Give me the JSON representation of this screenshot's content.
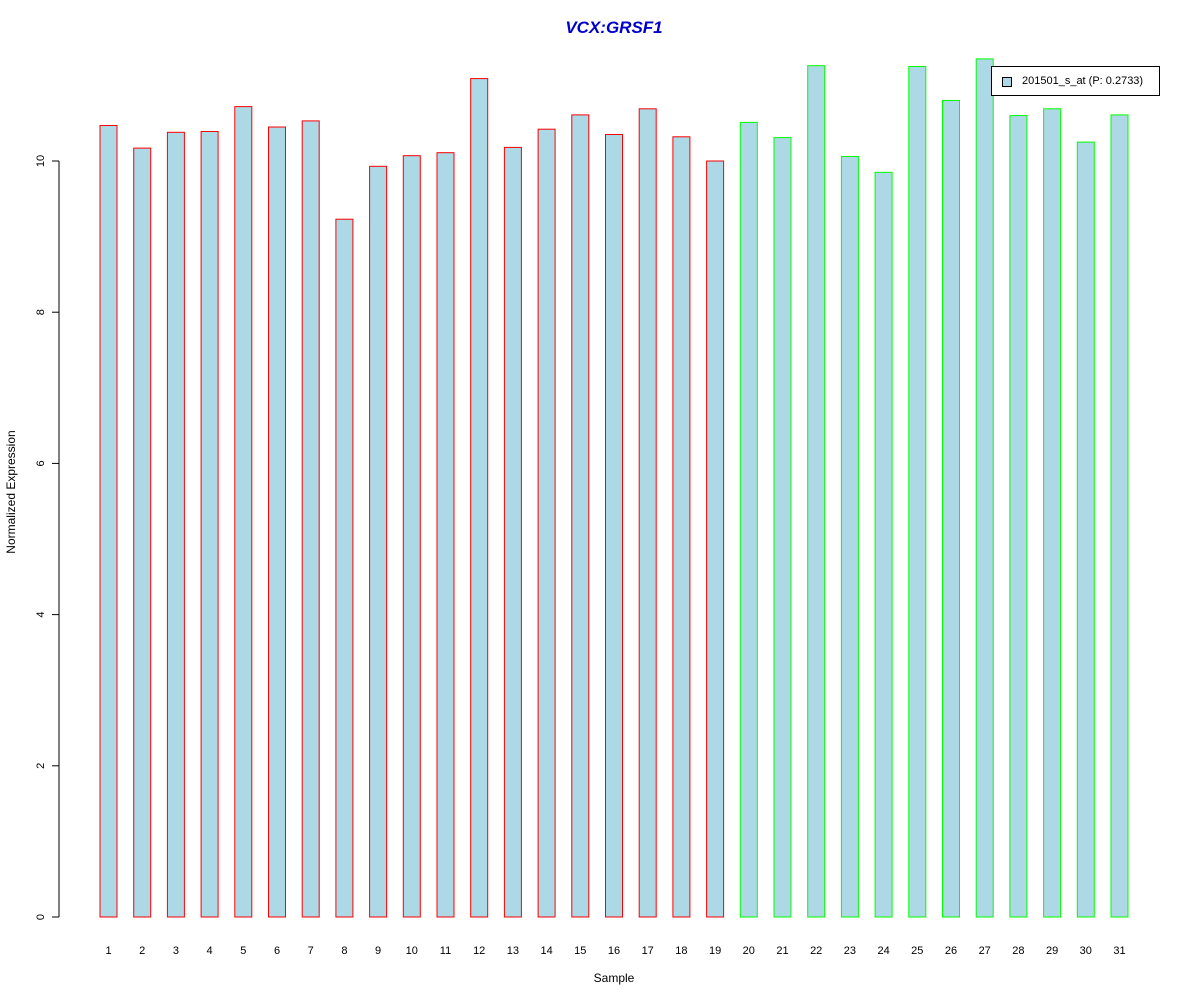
{
  "chart_data": {
    "type": "bar",
    "title": "VCX:GRSF1",
    "xlabel": "Sample",
    "ylabel": "Normalized Expression",
    "ylim": [
      0,
      11.35
    ],
    "yticks": [
      0,
      2,
      4,
      6,
      8,
      10
    ],
    "categories": [
      "1",
      "2",
      "3",
      "4",
      "5",
      "6",
      "7",
      "8",
      "9",
      "10",
      "11",
      "12",
      "13",
      "14",
      "15",
      "16",
      "17",
      "18",
      "19",
      "20",
      "21",
      "22",
      "23",
      "24",
      "25",
      "26",
      "27",
      "28",
      "29",
      "30",
      "31"
    ],
    "values": [
      10.47,
      10.17,
      10.38,
      10.39,
      10.72,
      10.45,
      10.53,
      9.23,
      9.93,
      10.07,
      10.11,
      11.09,
      10.18,
      10.42,
      10.61,
      10.35,
      10.69,
      10.32,
      10.0,
      10.51,
      10.31,
      11.26,
      10.06,
      9.85,
      11.25,
      10.8,
      11.35,
      10.6,
      10.69,
      10.25,
      10.61
    ],
    "groups": [
      "red",
      "red",
      "red",
      "red",
      "red",
      "red",
      "red",
      "red",
      "red",
      "red",
      "red",
      "red",
      "red",
      "red",
      "red",
      "red",
      "red",
      "red",
      "red",
      "green",
      "green",
      "green",
      "green",
      "green",
      "green",
      "green",
      "green",
      "green",
      "green",
      "green",
      "green"
    ],
    "fill_color": "#add8e6",
    "group_colors": {
      "red": "#ff0000",
      "green": "#00ff00"
    },
    "title_color": "#0000cc",
    "legend": {
      "label": "201501_s_at (P: 0.2733)",
      "position": "top-right",
      "swatch_color": "#add8e6"
    },
    "grid": false
  }
}
